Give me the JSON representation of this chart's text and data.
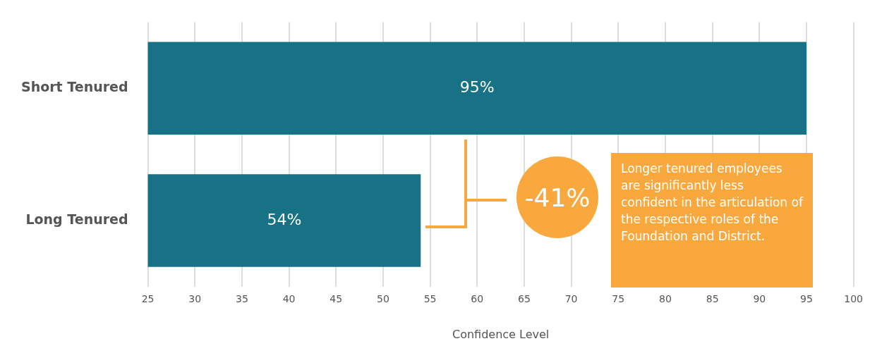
{
  "chart_data": {
    "type": "bar",
    "orientation": "horizontal",
    "categories": [
      "Short Tenured",
      "Long Tenured"
    ],
    "values": [
      95,
      54
    ],
    "color": "#177285",
    "value_labels": [
      "95%",
      "54%"
    ],
    "xlim": [
      25,
      100
    ],
    "xticks": [
      25,
      30,
      35,
      40,
      45,
      50,
      55,
      60,
      65,
      70,
      75,
      80,
      85,
      90,
      95,
      100
    ],
    "xlabel": "Confidence Level",
    "grid": "x",
    "legend": false,
    "annotations": [
      "-41%",
      "Longer tenured employees are significantly less confident in the articulation of the respective roles of the Foundation and District."
    ]
  }
}
